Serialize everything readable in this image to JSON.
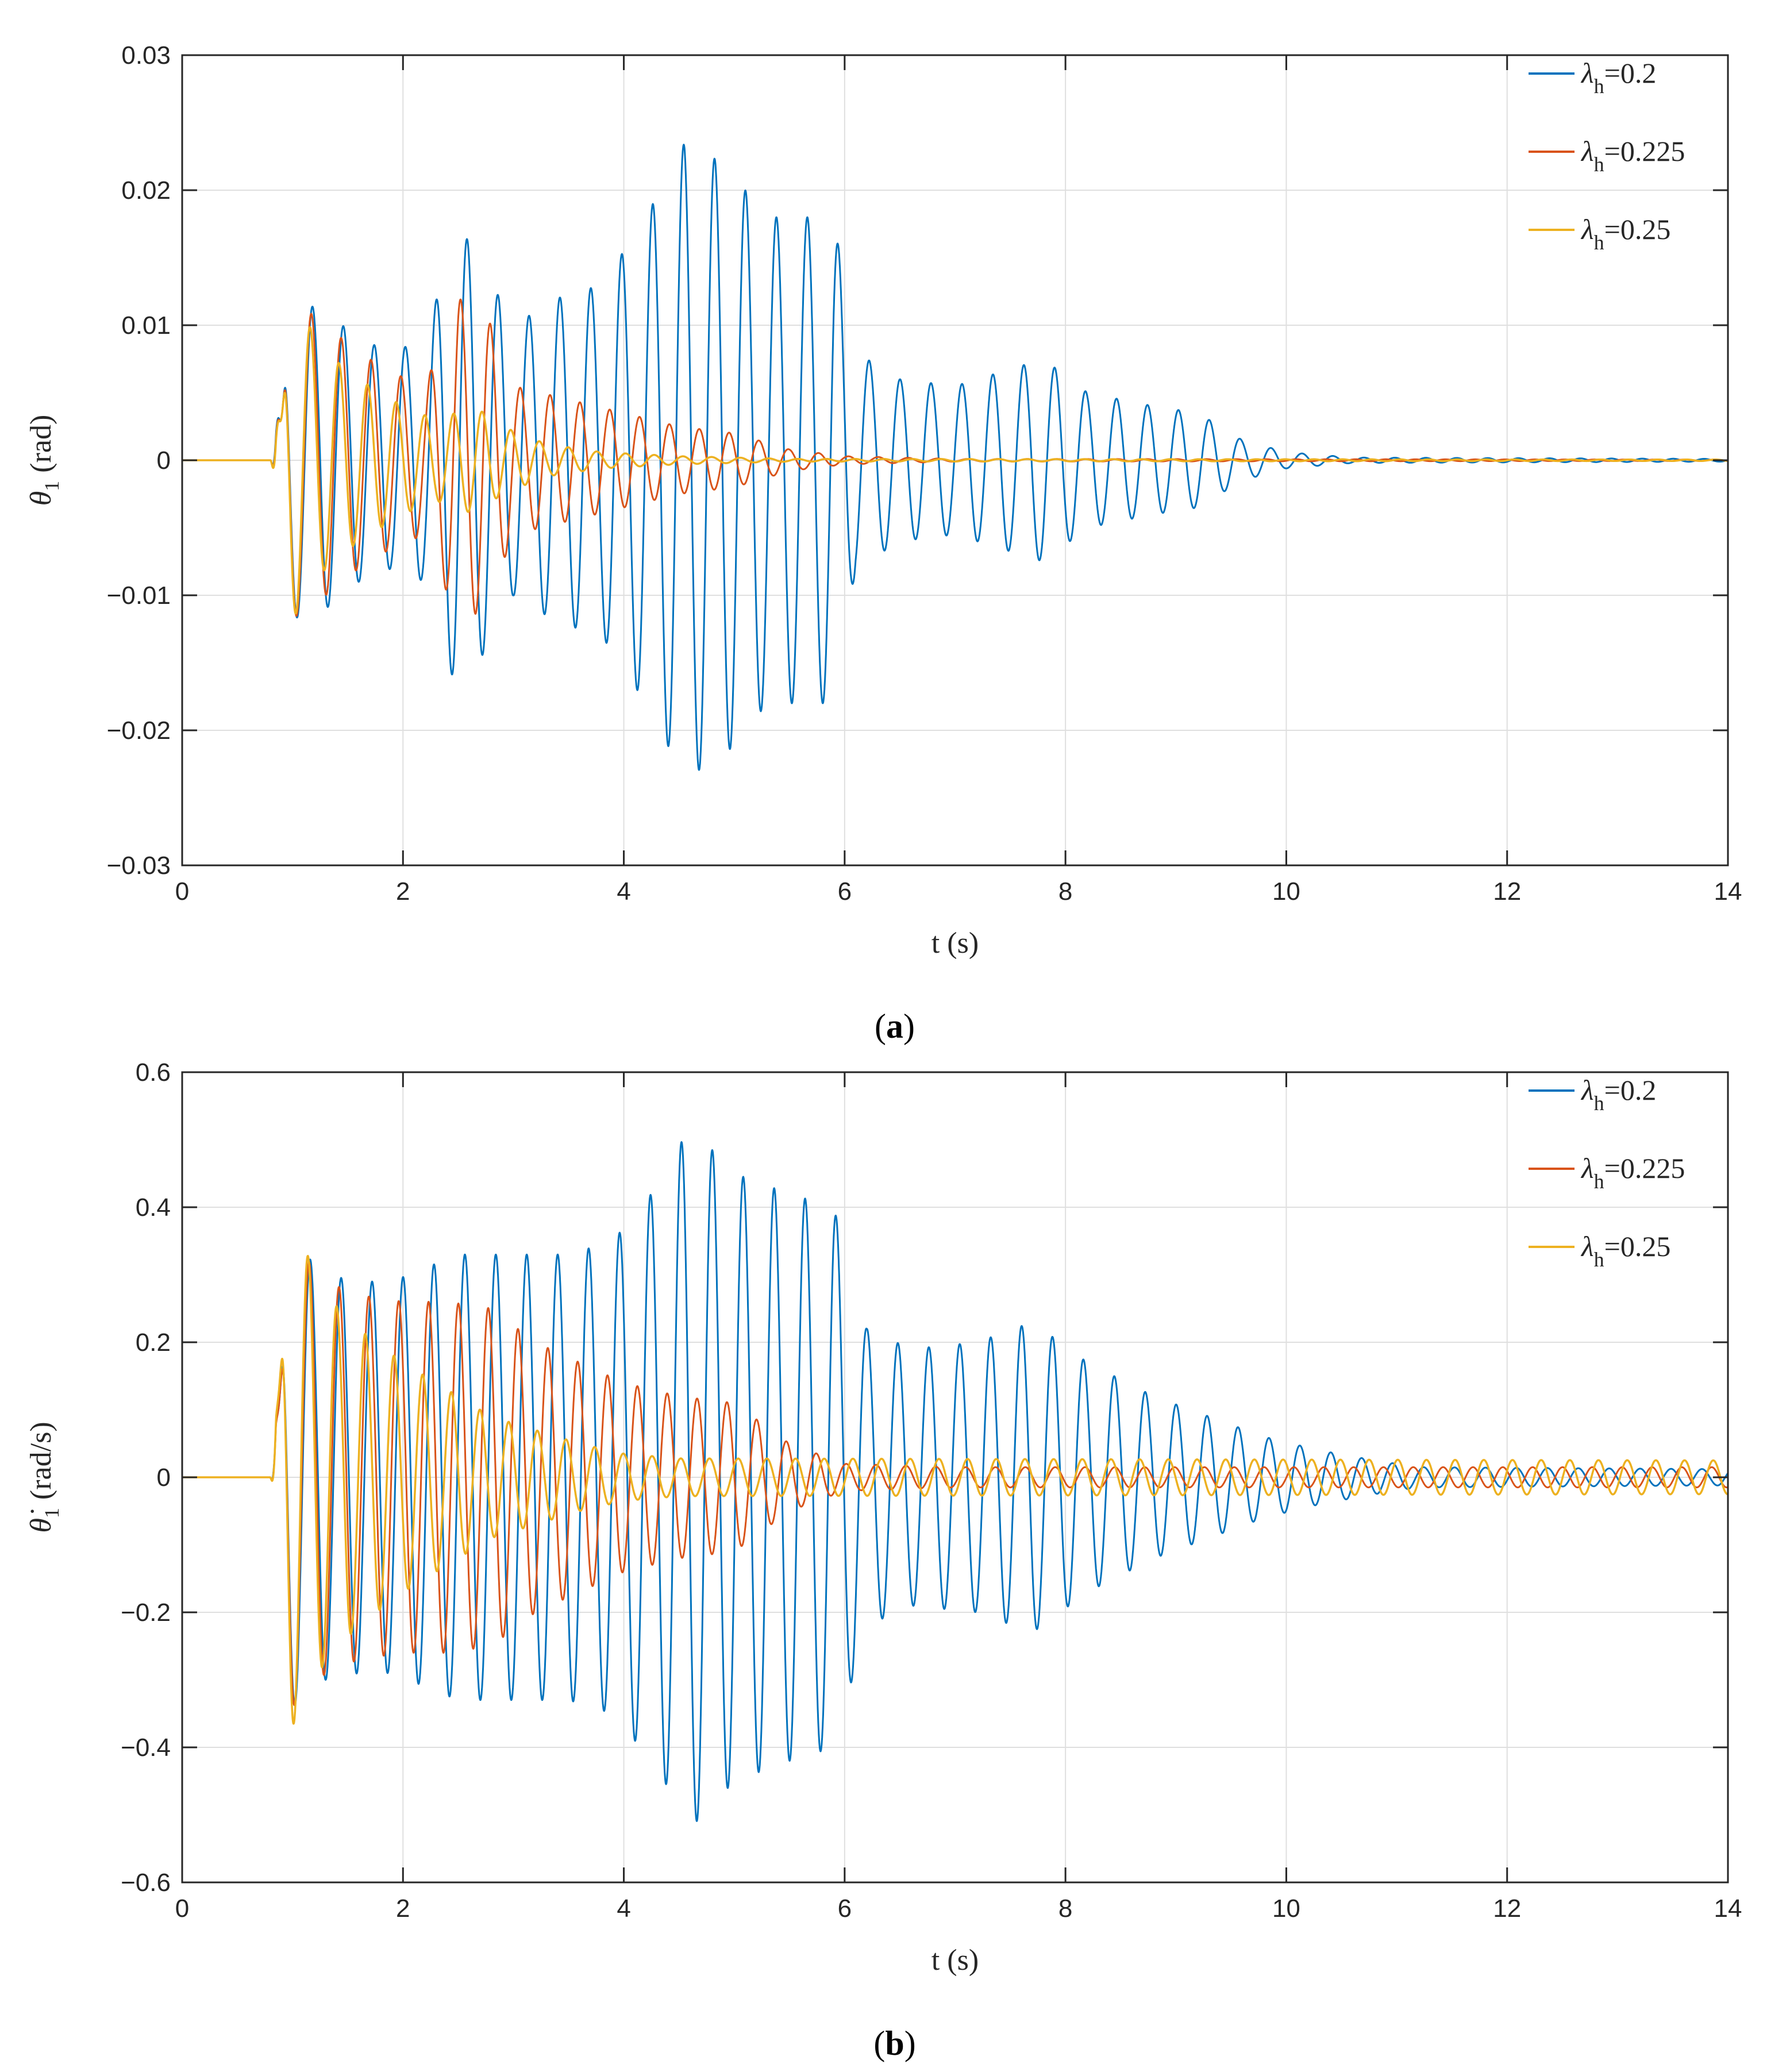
{
  "colors": {
    "s1": "#0072BD",
    "s2": "#D95319",
    "s3": "#EDB120",
    "axis": "#262626",
    "grid": "#DFDFDF"
  },
  "chart_data": [
    {
      "type": "line",
      "caption": "(a)",
      "caption_letter": "a",
      "xlabel": "t (s)",
      "ylabel_symbol": "θ",
      "ylabel_sub": "1",
      "ylabel_unit": "(rad)",
      "xlim": [
        0,
        14
      ],
      "ylim": [
        -0.03,
        0.03
      ],
      "xticks": [
        0,
        2,
        4,
        6,
        8,
        10,
        12,
        14
      ],
      "xtick_labels": [
        "0",
        "2",
        "4",
        "6",
        "8",
        "10",
        "12",
        "14"
      ],
      "yticks": [
        -0.03,
        -0.02,
        -0.01,
        0,
        0.01,
        0.02,
        0.03
      ],
      "ytick_labels": [
        "−0.03",
        "−0.02",
        "−0.01",
        "0",
        "0.01",
        "0.02",
        "0.03"
      ],
      "grid": true,
      "legend_position": "top-right",
      "series": [
        {
          "name": "λh=0.2",
          "lambda": "λ",
          "sub": "h",
          "label": "=0.2",
          "impulse": [
            0.8,
            0.008,
            0.9
          ],
          "frequency_hz": 3.57,
          "envelope": [
            [
              0.8,
              0.0
            ],
            [
              0.85,
              0.012
            ],
            [
              1.0,
              0.012
            ],
            [
              1.3,
              0.011
            ],
            [
              1.6,
              0.009
            ],
            [
              1.9,
              0.008
            ],
            [
              2.2,
              0.009
            ],
            [
              2.5,
              0.0175
            ],
            [
              2.75,
              0.014
            ],
            [
              3.0,
              0.01
            ],
            [
              3.4,
              0.012
            ],
            [
              3.8,
              0.013
            ],
            [
              4.2,
              0.018
            ],
            [
              4.55,
              0.0235
            ],
            [
              4.9,
              0.022
            ],
            [
              5.3,
              0.018
            ],
            [
              5.9,
              0.018
            ],
            [
              6.1,
              0.008
            ],
            [
              6.5,
              0.006
            ],
            [
              7.0,
              0.0055
            ],
            [
              7.8,
              0.0075
            ],
            [
              8.2,
              0.005
            ],
            [
              8.8,
              0.004
            ],
            [
              9.2,
              0.0035
            ],
            [
              9.6,
              0.0015
            ],
            [
              10.0,
              0.0006
            ],
            [
              10.6,
              0.0002
            ],
            [
              14.0,
              0.0001
            ]
          ]
        },
        {
          "name": "λh=0.225",
          "lambda": "λ",
          "sub": "h",
          "label": "=0.225",
          "impulse": [
            0.8,
            0.008,
            0.9
          ],
          "frequency_hz": 3.7,
          "envelope": [
            [
              0.8,
              0.0
            ],
            [
              0.85,
              0.012
            ],
            [
              1.0,
              0.012
            ],
            [
              1.3,
              0.01
            ],
            [
              1.6,
              0.008
            ],
            [
              1.9,
              0.0065
            ],
            [
              2.2,
              0.0055
            ],
            [
              2.5,
              0.012
            ],
            [
              2.75,
              0.011
            ],
            [
              3.0,
              0.0055
            ],
            [
              3.5,
              0.0045
            ],
            [
              4.0,
              0.0035
            ],
            [
              4.5,
              0.0025
            ],
            [
              5.0,
              0.002
            ],
            [
              5.5,
              0.0008
            ],
            [
              6.0,
              0.0003
            ],
            [
              7.0,
              0.0001
            ],
            [
              14.0,
              5e-05
            ]
          ]
        },
        {
          "name": "λh=0.25",
          "lambda": "λ",
          "sub": "h",
          "label": "=0.25",
          "impulse": [
            0.8,
            0.008,
            0.9
          ],
          "frequency_hz": 3.85,
          "envelope": [
            [
              0.8,
              0.0
            ],
            [
              0.85,
              0.012
            ],
            [
              1.0,
              0.012
            ],
            [
              1.3,
              0.008
            ],
            [
              1.6,
              0.006
            ],
            [
              2.0,
              0.004
            ],
            [
              2.3,
              0.003
            ],
            [
              2.65,
              0.004
            ],
            [
              2.9,
              0.0025
            ],
            [
              3.3,
              0.0012
            ],
            [
              3.8,
              0.0006
            ],
            [
              4.5,
              0.0003
            ],
            [
              5.5,
              0.0001
            ],
            [
              14.0,
              5e-05
            ]
          ]
        }
      ]
    },
    {
      "type": "line",
      "caption": "(b)",
      "caption_letter": "b",
      "xlabel": "t (s)",
      "ylabel_symbol": "θ̇",
      "ylabel_sub": "1",
      "ylabel_unit": "(rad/s)",
      "xlim": [
        0,
        14
      ],
      "ylim": [
        -0.6,
        0.6
      ],
      "xticks": [
        0,
        2,
        4,
        6,
        8,
        10,
        12,
        14
      ],
      "xtick_labels": [
        "0",
        "2",
        "4",
        "6",
        "8",
        "10",
        "12",
        "14"
      ],
      "yticks": [
        -0.6,
        -0.4,
        -0.2,
        0,
        0.2,
        0.4,
        0.6
      ],
      "ytick_labels": [
        "−0.6",
        "−0.4",
        "−0.2",
        "0",
        "0.2",
        "0.4",
        "0.6"
      ],
      "grid": true,
      "legend_position": "top-right",
      "series": [
        {
          "name": "λh=0.2",
          "lambda": "λ",
          "sub": "h",
          "label": "=0.2",
          "impulse": [
            0.8,
            0.17,
            0.88
          ],
          "frequency_hz": 3.57,
          "envelope": [
            [
              0.8,
              0.0
            ],
            [
              0.85,
              0.35
            ],
            [
              1.0,
              0.35
            ],
            [
              1.3,
              0.3
            ],
            [
              1.6,
              0.29
            ],
            [
              1.9,
              0.29
            ],
            [
              2.2,
              0.31
            ],
            [
              2.5,
              0.33
            ],
            [
              3.0,
              0.33
            ],
            [
              3.5,
              0.33
            ],
            [
              3.9,
              0.35
            ],
            [
              4.3,
              0.43
            ],
            [
              4.6,
              0.52
            ],
            [
              5.0,
              0.45
            ],
            [
              5.5,
              0.42
            ],
            [
              5.9,
              0.4
            ],
            [
              6.2,
              0.22
            ],
            [
              6.6,
              0.19
            ],
            [
              7.2,
              0.2
            ],
            [
              7.7,
              0.23
            ],
            [
              8.2,
              0.17
            ],
            [
              8.8,
              0.12
            ],
            [
              9.3,
              0.09
            ],
            [
              9.8,
              0.06
            ],
            [
              10.3,
              0.04
            ],
            [
              10.8,
              0.025
            ],
            [
              11.2,
              0.015
            ],
            [
              14.0,
              0.012
            ]
          ]
        },
        {
          "name": "λh=0.225",
          "lambda": "λ",
          "sub": "h",
          "label": "=0.225",
          "impulse": [
            0.8,
            0.17,
            0.88
          ],
          "frequency_hz": 3.7,
          "envelope": [
            [
              0.8,
              0.0
            ],
            [
              0.85,
              0.35
            ],
            [
              1.0,
              0.35
            ],
            [
              1.3,
              0.29
            ],
            [
              1.6,
              0.27
            ],
            [
              2.0,
              0.26
            ],
            [
              2.4,
              0.26
            ],
            [
              2.8,
              0.25
            ],
            [
              3.2,
              0.2
            ],
            [
              3.6,
              0.17
            ],
            [
              4.0,
              0.14
            ],
            [
              4.5,
              0.12
            ],
            [
              5.0,
              0.11
            ],
            [
              5.5,
              0.05
            ],
            [
              6.0,
              0.02
            ],
            [
              7.0,
              0.015
            ],
            [
              14.0,
              0.015
            ]
          ]
        },
        {
          "name": "λh=0.25",
          "lambda": "λ",
          "sub": "h",
          "label": "=0.25",
          "impulse": [
            0.8,
            0.17,
            0.88
          ],
          "frequency_hz": 3.85,
          "envelope": [
            [
              0.8,
              0.0
            ],
            [
              0.85,
              0.38
            ],
            [
              1.0,
              0.38
            ],
            [
              1.3,
              0.27
            ],
            [
              1.6,
              0.22
            ],
            [
              2.0,
              0.17
            ],
            [
              2.4,
              0.13
            ],
            [
              2.8,
              0.09
            ],
            [
              3.2,
              0.07
            ],
            [
              3.6,
              0.05
            ],
            [
              4.0,
              0.035
            ],
            [
              4.5,
              0.028
            ],
            [
              14.0,
              0.025
            ]
          ]
        }
      ]
    }
  ]
}
